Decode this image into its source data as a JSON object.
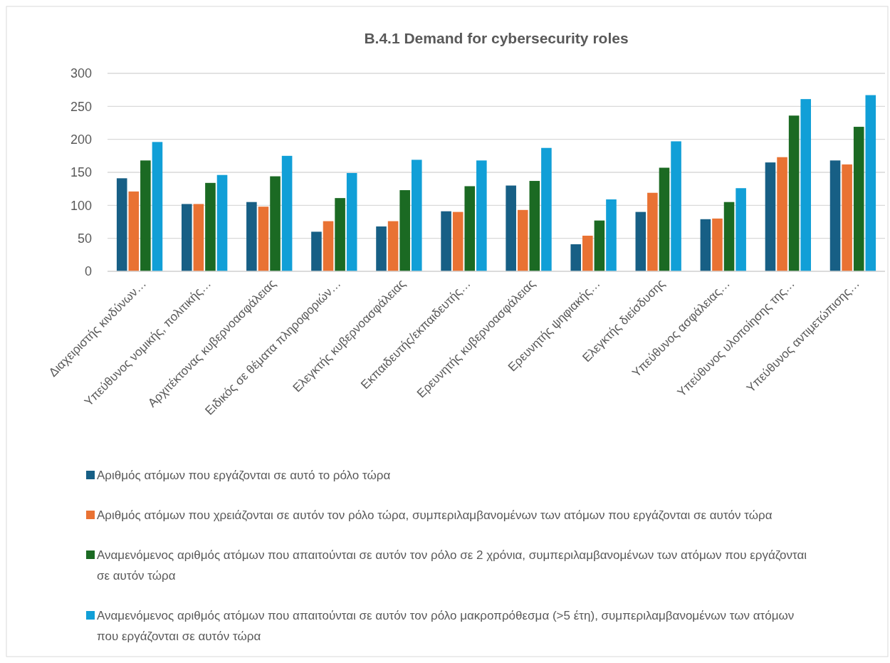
{
  "chart_data": {
    "type": "bar",
    "title": "B.4.1 Demand for cybersecurity roles",
    "categories": [
      "Διαχειριστής κινδύνων…",
      "Υπεύθυνος νομικής, πολιτικής…",
      "Αρχιτέκτονας κυβερνοασφάλειας",
      "Ειδικός σε θέματα πληροφοριών…",
      "Ελεγκτής κυβερνοασφάλειας",
      "Εκπαιδευτής/εκπαιδευτής…",
      "Ερευνητής κυβερνοασφάλειας",
      "Ερευνητής ψηφιακής…",
      "Ελεγκτής διείσδυσης",
      "Υπεύθυνος ασφάλειας…",
      "Υπεύθυνος υλοποίησης της…",
      "Υπεύθυνος αντιμετώπισης…"
    ],
    "series": [
      {
        "name": "Αριθμός ατόμων που εργάζονται σε αυτό το ρόλο τώρα",
        "color": "#175f85",
        "values": [
          141,
          102,
          105,
          60,
          68,
          91,
          130,
          41,
          90,
          79,
          165,
          168
        ]
      },
      {
        "name": "Αριθμός ατόμων που χρειάζονται σε αυτόν τον ρόλο τώρα, συμπεριλαμβανομένων των ατόμων που εργάζονται σε αυτόν τώρα",
        "color": "#e97233",
        "values": [
          121,
          102,
          98,
          76,
          76,
          90,
          93,
          54,
          119,
          80,
          173,
          162
        ]
      },
      {
        "name": "Αναμενόμενος αριθμός ατόμων που απαιτούνται σε αυτόν τον ρόλο σε 2 χρόνια, συμπεριλαμβανομένων των ατόμων που εργάζονται σε αυτόν τώρα",
        "color": "#1b6a23",
        "values": [
          168,
          134,
          144,
          111,
          123,
          129,
          137,
          77,
          157,
          105,
          236,
          219
        ]
      },
      {
        "name": "Αναμενόμενος αριθμός ατόμων που απαιτούνται σε αυτόν τον ρόλο μακροπρόθεσμα (>5 έτη), συμπεριλαμβανομένων των ατόμων που εργάζονται σε αυτόν τώρα",
        "color": "#119fd7",
        "values": [
          196,
          146,
          175,
          149,
          169,
          168,
          187,
          109,
          197,
          126,
          261,
          267
        ]
      }
    ],
    "ylim": [
      0,
      300
    ],
    "yticks": [
      0,
      50,
      100,
      150,
      200,
      250,
      300
    ],
    "grid": "y",
    "legend": "bottom"
  }
}
